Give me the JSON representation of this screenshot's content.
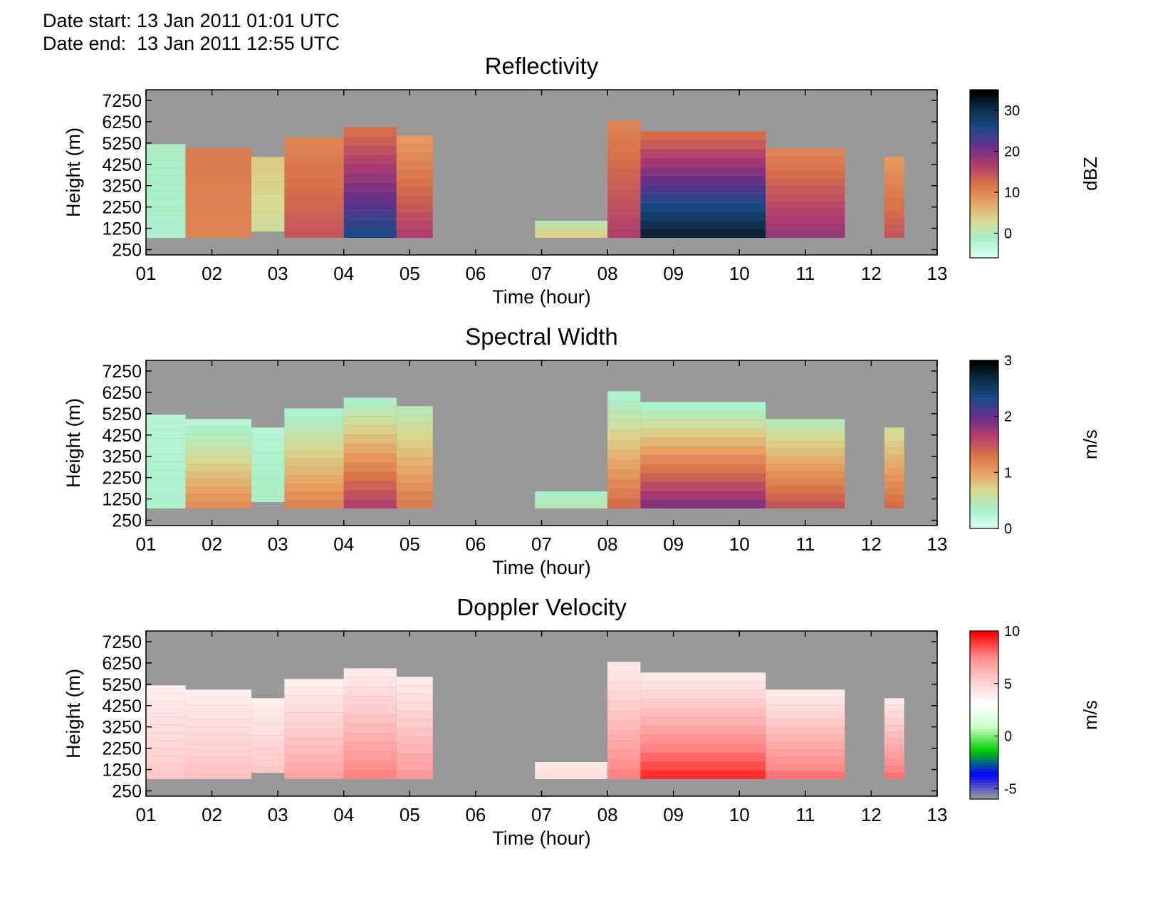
{
  "header": {
    "date_start": "Date start: 13 Jan 2011 01:01 UTC",
    "date_end": "Date end:  13 Jan 2011 12:55 UTC"
  },
  "chart_data": [
    {
      "type": "heatmap",
      "title": "Reflectivity",
      "xlabel": "Time (hour)",
      "ylabel": "Height (m)",
      "xlim": [
        1,
        13
      ],
      "ylim": [
        0,
        7750
      ],
      "xticks": [
        "01",
        "02",
        "03",
        "04",
        "05",
        "06",
        "07",
        "08",
        "09",
        "10",
        "11",
        "12",
        "13"
      ],
      "yticks": [
        "250",
        "1250",
        "2250",
        "3250",
        "4250",
        "5250",
        "6250",
        "7250"
      ],
      "colorbar": {
        "label": "dBZ",
        "range": [
          -6,
          35
        ],
        "ticks": [
          "0",
          "10",
          "20",
          "30"
        ],
        "tick_values": [
          0,
          10,
          20,
          30
        ],
        "colormap": [
          "#d9fff0",
          "#a8f0c8",
          "#d8d890",
          "#e8a060",
          "#d87048",
          "#b03c6e",
          "#6a2f8a",
          "#1c4a8a",
          "#0d2f4a",
          "#000000"
        ]
      },
      "background_color": "#999999",
      "echo_columns": [
        {
          "t0": 1.0,
          "t1": 1.6,
          "base": 800,
          "top": 5200,
          "level_low": 0.1,
          "level_high": 0.12
        },
        {
          "t0": 1.6,
          "t1": 2.6,
          "base": 800,
          "top": 5000,
          "level_low": 0.4,
          "level_high": 0.42
        },
        {
          "t0": 2.6,
          "t1": 3.1,
          "base": 1100,
          "top": 4600,
          "level_low": 0.2,
          "level_high": 0.25
        },
        {
          "t0": 3.1,
          "t1": 4.0,
          "base": 800,
          "top": 5500,
          "level_low": 0.5,
          "level_high": 0.4
        },
        {
          "t0": 4.0,
          "t1": 4.8,
          "base": 800,
          "top": 6000,
          "level_low": 0.78,
          "level_high": 0.45
        },
        {
          "t0": 4.8,
          "t1": 5.35,
          "base": 800,
          "top": 5600,
          "level_low": 0.55,
          "level_high": 0.35
        },
        {
          "t0": 6.9,
          "t1": 8.0,
          "base": 800,
          "top": 1600,
          "level_low": 0.25,
          "level_high": 0.15
        },
        {
          "t0": 8.0,
          "t1": 8.5,
          "base": 800,
          "top": 6300,
          "level_low": 0.55,
          "level_high": 0.4
        },
        {
          "t0": 8.5,
          "t1": 10.4,
          "base": 800,
          "top": 5800,
          "level_low": 0.92,
          "level_high": 0.45
        },
        {
          "t0": 10.4,
          "t1": 11.6,
          "base": 800,
          "top": 5000,
          "level_low": 0.6,
          "level_high": 0.4
        },
        {
          "t0": 12.2,
          "t1": 12.5,
          "base": 800,
          "top": 4600,
          "level_low": 0.5,
          "level_high": 0.35
        }
      ]
    },
    {
      "type": "heatmap",
      "title": "Spectral Width",
      "xlabel": "Time (hour)",
      "ylabel": "Height (m)",
      "xlim": [
        1,
        13
      ],
      "ylim": [
        0,
        7750
      ],
      "xticks": [
        "01",
        "02",
        "03",
        "04",
        "05",
        "06",
        "07",
        "08",
        "09",
        "10",
        "11",
        "12",
        "13"
      ],
      "yticks": [
        "250",
        "1250",
        "2250",
        "3250",
        "4250",
        "5250",
        "6250",
        "7250"
      ],
      "colorbar": {
        "label": "m/s",
        "range": [
          0,
          3
        ],
        "ticks": [
          "0",
          "1",
          "2",
          "3"
        ],
        "tick_values": [
          0,
          1,
          2,
          3
        ],
        "colormap": [
          "#d9fff0",
          "#a8f0c8",
          "#d8d890",
          "#e8a060",
          "#d87048",
          "#b03c6e",
          "#6a2f8a",
          "#1c4a8a",
          "#0d2f4a",
          "#000000"
        ]
      },
      "background_color": "#999999",
      "echo_columns": [
        {
          "t0": 1.0,
          "t1": 1.6,
          "base": 800,
          "top": 5200,
          "level_low": 0.1,
          "level_high": 0.08
        },
        {
          "t0": 1.6,
          "t1": 2.6,
          "base": 800,
          "top": 5000,
          "level_low": 0.38,
          "level_high": 0.08
        },
        {
          "t0": 2.6,
          "t1": 3.1,
          "base": 1100,
          "top": 4600,
          "level_low": 0.12,
          "level_high": 0.08
        },
        {
          "t0": 3.1,
          "t1": 4.0,
          "base": 800,
          "top": 5500,
          "level_low": 0.4,
          "level_high": 0.1
        },
        {
          "t0": 4.0,
          "t1": 4.8,
          "base": 800,
          "top": 6000,
          "level_low": 0.55,
          "level_high": 0.12
        },
        {
          "t0": 4.8,
          "t1": 5.35,
          "base": 800,
          "top": 5600,
          "level_low": 0.42,
          "level_high": 0.15
        },
        {
          "t0": 6.9,
          "t1": 8.0,
          "base": 800,
          "top": 1600,
          "level_low": 0.15,
          "level_high": 0.1
        },
        {
          "t0": 8.0,
          "t1": 8.5,
          "base": 800,
          "top": 6300,
          "level_low": 0.45,
          "level_high": 0.1
        },
        {
          "t0": 8.5,
          "t1": 10.4,
          "base": 800,
          "top": 5800,
          "level_low": 0.62,
          "level_high": 0.1
        },
        {
          "t0": 10.4,
          "t1": 11.6,
          "base": 800,
          "top": 5000,
          "level_low": 0.5,
          "level_high": 0.15
        },
        {
          "t0": 12.2,
          "t1": 12.5,
          "base": 800,
          "top": 4600,
          "level_low": 0.45,
          "level_high": 0.2
        }
      ]
    },
    {
      "type": "heatmap",
      "title": "Doppler Velocity",
      "xlabel": "Time (hour)",
      "ylabel": "Height (m)",
      "xlim": [
        1,
        13
      ],
      "ylim": [
        0,
        7750
      ],
      "xticks": [
        "01",
        "02",
        "03",
        "04",
        "05",
        "06",
        "07",
        "08",
        "09",
        "10",
        "11",
        "12",
        "13"
      ],
      "yticks": [
        "250",
        "1250",
        "2250",
        "3250",
        "4250",
        "5250",
        "6250",
        "7250"
      ],
      "colorbar": {
        "label": "m/s",
        "range": [
          -6,
          10
        ],
        "ticks": [
          "-5",
          "0",
          "5",
          "10"
        ],
        "tick_values": [
          -5,
          0,
          5,
          10
        ],
        "colormap": [
          "#999999",
          "#0000ff",
          "#00cc00",
          "#ccffcc",
          "#ffffff",
          "#ffcccc",
          "#ff8888",
          "#ff0000"
        ]
      },
      "background_color": "#999999",
      "echo_columns": [
        {
          "t0": 1.0,
          "t1": 1.6,
          "base": 800,
          "top": 5200,
          "level_low": 0.72,
          "level_high": 0.62
        },
        {
          "t0": 1.6,
          "t1": 2.6,
          "base": 800,
          "top": 5000,
          "level_low": 0.74,
          "level_high": 0.62
        },
        {
          "t0": 2.6,
          "t1": 3.1,
          "base": 1100,
          "top": 4600,
          "level_low": 0.72,
          "level_high": 0.62
        },
        {
          "t0": 3.1,
          "t1": 4.0,
          "base": 800,
          "top": 5500,
          "level_low": 0.8,
          "level_high": 0.62
        },
        {
          "t0": 4.0,
          "t1": 4.8,
          "base": 800,
          "top": 6000,
          "level_low": 0.86,
          "level_high": 0.63
        },
        {
          "t0": 4.8,
          "t1": 5.35,
          "base": 800,
          "top": 5600,
          "level_low": 0.82,
          "level_high": 0.63
        },
        {
          "t0": 6.9,
          "t1": 8.0,
          "base": 800,
          "top": 1600,
          "level_low": 0.66,
          "level_high": 0.62
        },
        {
          "t0": 8.0,
          "t1": 8.5,
          "base": 800,
          "top": 6300,
          "level_low": 0.86,
          "level_high": 0.63
        },
        {
          "t0": 8.5,
          "t1": 10.4,
          "base": 800,
          "top": 5800,
          "level_low": 0.95,
          "level_high": 0.63
        },
        {
          "t0": 10.4,
          "t1": 11.6,
          "base": 800,
          "top": 5000,
          "level_low": 0.88,
          "level_high": 0.63
        },
        {
          "t0": 12.2,
          "t1": 12.5,
          "base": 800,
          "top": 4600,
          "level_low": 0.88,
          "level_high": 0.64
        }
      ]
    }
  ]
}
